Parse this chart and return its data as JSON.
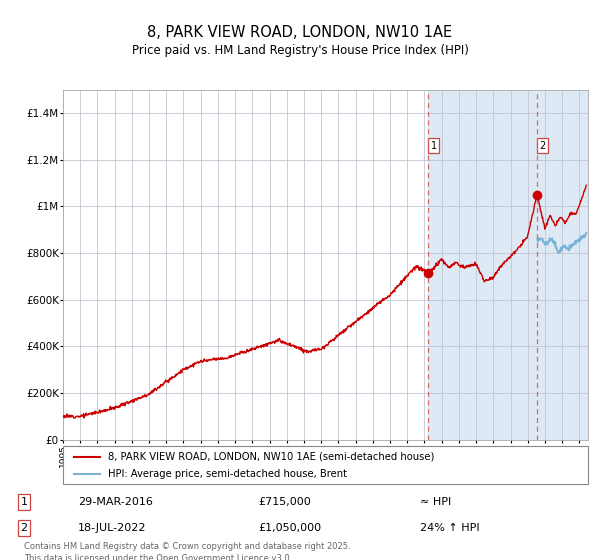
{
  "title": "8, PARK VIEW ROAD, LONDON, NW10 1AE",
  "subtitle": "Price paid vs. HM Land Registry's House Price Index (HPI)",
  "legend_line1": "8, PARK VIEW ROAD, LONDON, NW10 1AE (semi-detached house)",
  "legend_line2": "HPI: Average price, semi-detached house, Brent",
  "annotation1_label": "1",
  "annotation1_date": "29-MAR-2016",
  "annotation1_price": "£715,000",
  "annotation1_hpi": "≈ HPI",
  "annotation2_label": "2",
  "annotation2_date": "18-JUL-2022",
  "annotation2_price": "£1,050,000",
  "annotation2_hpi": "24% ↑ HPI",
  "footnote": "Contains HM Land Registry data © Crown copyright and database right 2025.\nThis data is licensed under the Open Government Licence v3.0.",
  "hpi_line_color": "#7ab3d8",
  "price_line_color": "#cc0000",
  "marker_color": "#cc0000",
  "vline_color": "#dd6666",
  "bg_shaded_color": "#ddeaf5",
  "grid_color": "#bbbbcc",
  "ylim": [
    0,
    1500000
  ],
  "yticks": [
    0,
    200000,
    400000,
    600000,
    800000,
    1000000,
    1200000,
    1400000
  ],
  "ytick_labels": [
    "£0",
    "£200K",
    "£400K",
    "£600K",
    "£800K",
    "£1M",
    "£1.2M",
    "£1.4M"
  ],
  "sale1_year": 2016.22,
  "sale1_value": 715000,
  "sale2_year": 2022.54,
  "sale2_value": 1050000,
  "xmin": 1995,
  "xmax": 2025.5
}
